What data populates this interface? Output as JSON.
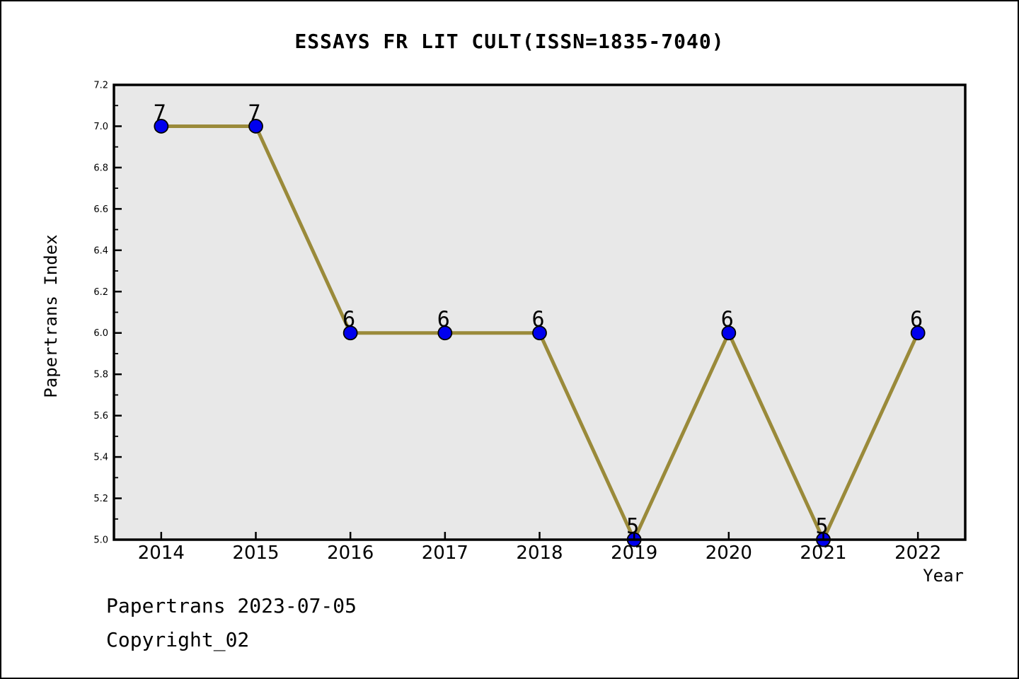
{
  "chart_data": {
    "type": "line",
    "title": "ESSAYS FR LIT CULT(ISSN=1835-7040)",
    "xlabel": "Year",
    "ylabel": "Papertrans Index",
    "x": [
      2014,
      2015,
      2016,
      2017,
      2018,
      2019,
      2020,
      2021,
      2022
    ],
    "values": [
      7,
      7,
      6,
      6,
      6,
      5,
      6,
      5,
      6
    ],
    "point_labels": [
      "7",
      "7",
      "6",
      "6",
      "6",
      "5",
      "6",
      "5",
      "6"
    ],
    "x_ticks": [
      "2014",
      "2015",
      "2016",
      "2017",
      "2018",
      "2019",
      "2020",
      "2021",
      "2022"
    ],
    "y_ticks": [
      "5.0",
      "5.2",
      "5.4",
      "5.6",
      "5.8",
      "6.0",
      "6.2",
      "6.4",
      "6.6",
      "6.8",
      "7.0",
      "7.2"
    ],
    "xlim": [
      2013.5,
      2022.5
    ],
    "ylim": [
      5.0,
      7.2
    ],
    "y_minor_step": 0.1,
    "grid": false,
    "legend_position": "none",
    "colors": {
      "line": "#9a8a3a",
      "marker": "#0000ee",
      "marker_edge": "#000000",
      "plot_background": "#e8e8e8",
      "axes": "#000000"
    }
  },
  "footer": {
    "line1": "Papertrans 2023-07-05",
    "line2": "Copyright_02"
  }
}
